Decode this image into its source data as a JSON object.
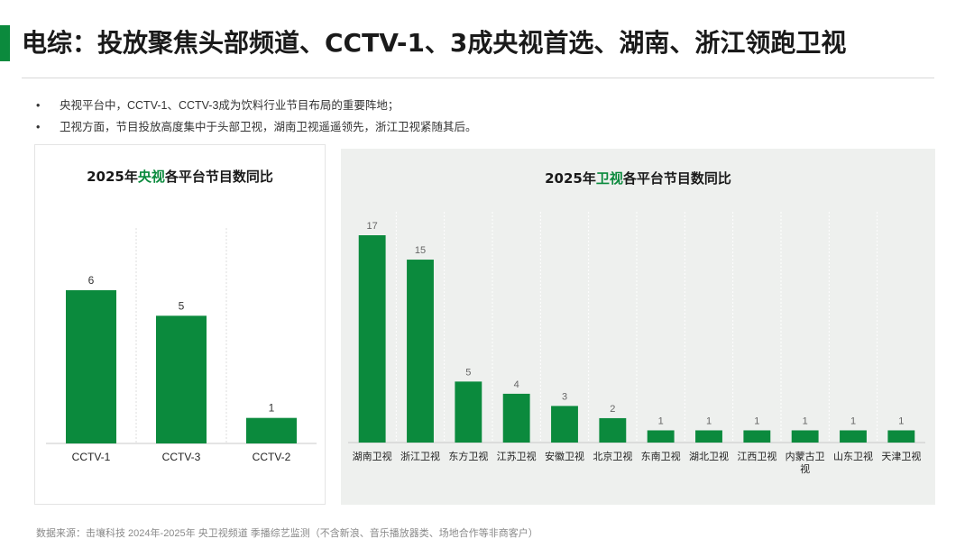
{
  "header": {
    "title": "电综：投放聚焦头部频道、CCTV-1、3成央视首选、湖南、浙江领跑卫视"
  },
  "bullets": [
    "央视平台中，CCTV-1、CCTV-3成为饮料行业节目布局的重要阵地；",
    "卫视方面，节目投放高度集中于头部卫视，湖南卫视遥遥领先，浙江卫视紧随其后。"
  ],
  "footer": {
    "source": "数据来源：击壤科技 2024年-2025年 央卫视频道 季播综艺监测（不含新浪、音乐播放器类、场地合作等非商客户）"
  },
  "colors": {
    "accent": "#0b8a3d",
    "bar": "#0b8a3d",
    "panel_bg": "#eef0ee"
  },
  "chart_data": [
    {
      "type": "bar",
      "title_prefix": "2025年",
      "title_highlight": "央视",
      "title_suffix": "各平台节目数同比",
      "categories": [
        "CCTV-1",
        "CCTV-3",
        "CCTV-2"
      ],
      "values": [
        6,
        5,
        1
      ],
      "ylim": [
        0,
        7
      ],
      "grid": true,
      "legend": "none"
    },
    {
      "type": "bar",
      "title_prefix": "2025年",
      "title_highlight": "卫视",
      "title_suffix": "各平台节目数同比",
      "categories": [
        "湖南卫视",
        "浙江卫视",
        "东方卫视",
        "江苏卫视",
        "安徽卫视",
        "北京卫视",
        "东南卫视",
        "湖北卫视",
        "江西卫视",
        "内蒙古卫视",
        "山东卫视",
        "天津卫视"
      ],
      "values": [
        17,
        15,
        5,
        4,
        3,
        2,
        1,
        1,
        1,
        1,
        1,
        1
      ],
      "ylim": [
        0,
        18
      ],
      "grid": true,
      "legend": "none"
    }
  ]
}
